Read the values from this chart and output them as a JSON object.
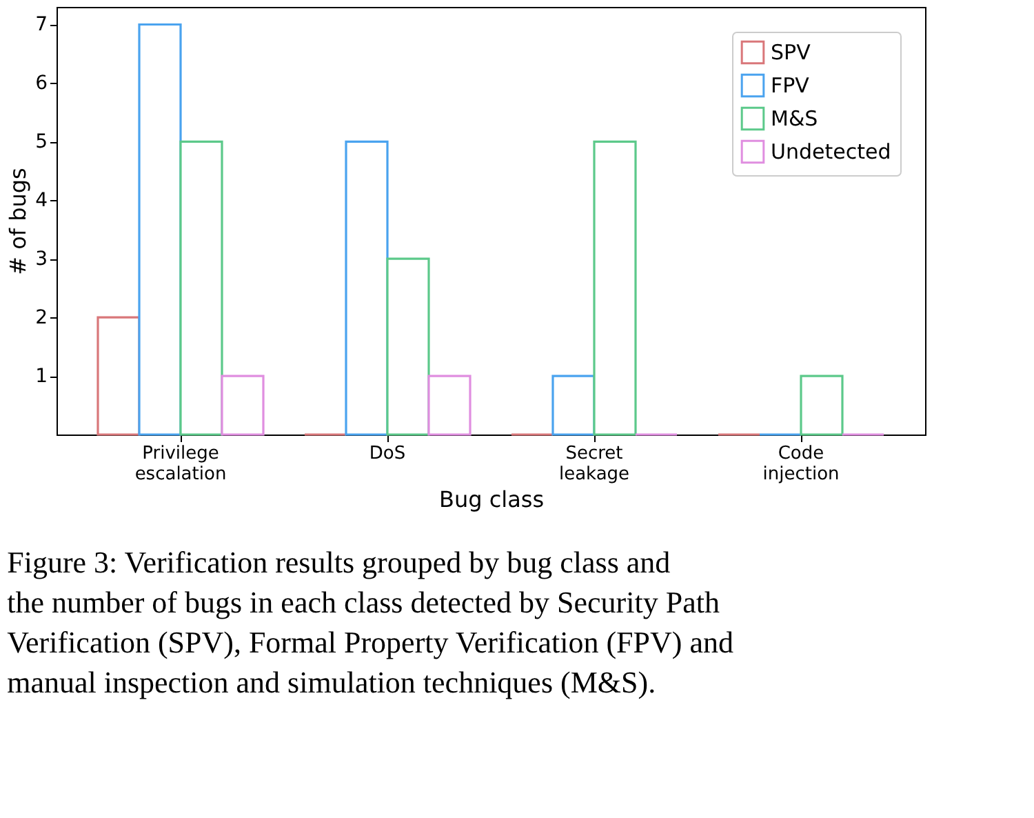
{
  "chart_data": {
    "type": "bar",
    "categories": [
      "Privilege escalation",
      "DoS",
      "Secret leakage",
      "Code injection"
    ],
    "series": [
      {
        "name": "SPV",
        "color": "#d9777a",
        "values": [
          2,
          0,
          0,
          0
        ]
      },
      {
        "name": "FPV",
        "color": "#4aa3ef",
        "values": [
          7,
          5,
          1,
          0
        ]
      },
      {
        "name": "M&S",
        "color": "#5cc98a",
        "values": [
          5,
          3,
          5,
          1
        ]
      },
      {
        "name": "Undetected",
        "color": "#e08ee0",
        "values": [
          1,
          1,
          0,
          0
        ]
      }
    ],
    "xlabel": "Bug class",
    "ylabel": "# of bugs",
    "ylim": [
      0,
      7.3
    ],
    "yticks": [
      1,
      2,
      3,
      4,
      5,
      6,
      7
    ],
    "legend": "top right",
    "grid": false,
    "annotations": [
      "Figure 3: Verification results grouped by bug class and the number of bugs in each class detected by Security Path Verification (SPV), Formal Property Verification (FPV) and manual inspection and simulation techniques (M&S)."
    ]
  }
}
